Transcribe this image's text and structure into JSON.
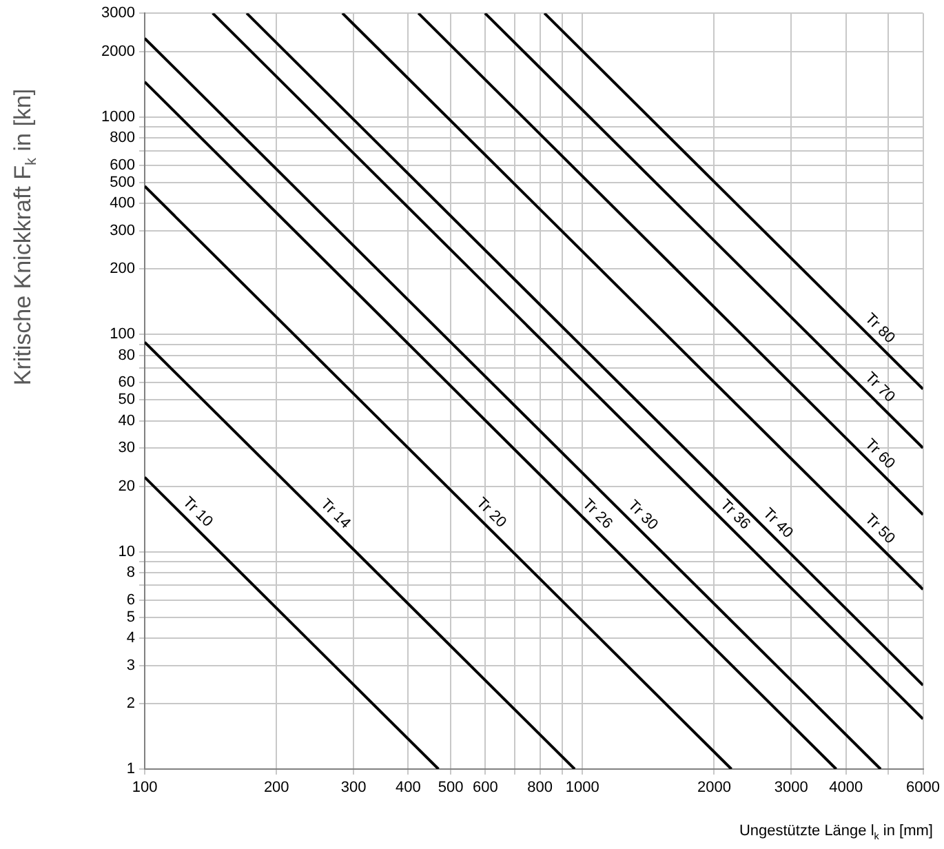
{
  "chart_data": {
    "type": "line",
    "xlabel": "Ungestützte Länge l$_{k}$ in [mm]",
    "ylabel": "Kritische Knickkraft F$_{k}$ in [kn]",
    "log": "xy",
    "grid": true,
    "legend": false,
    "marker": "none",
    "line_style": "solid",
    "xlim": [
      100,
      6000
    ],
    "ylim": [
      1,
      3000
    ],
    "xticks": [
      100,
      200,
      300,
      400,
      500,
      600,
      {
        "value": 700,
        "label": null
      },
      800,
      {
        "value": 900,
        "label": null
      },
      1000,
      2000,
      3000,
      4000,
      {
        "value": 5000,
        "label": null
      },
      6000
    ],
    "yticks": [
      1,
      2,
      3,
      4,
      5,
      6,
      {
        "value": 7,
        "label": null
      },
      8,
      {
        "value": 9,
        "label": null
      },
      10,
      20,
      30,
      40,
      50,
      60,
      {
        "value": 70,
        "label": null
      },
      80,
      {
        "value": 90,
        "label": null
      },
      100,
      200,
      300,
      400,
      500,
      600,
      {
        "value": 700,
        "label": null
      },
      800,
      {
        "value": 900,
        "label": null
      },
      1000,
      2000,
      3000
    ],
    "series": [
      {
        "name": "Tr 10",
        "color": "#000000",
        "x": [
          100,
          469
        ],
        "values": [
          22,
          1
        ]
      },
      {
        "name": "Tr 14",
        "color": "#000000",
        "x": [
          100,
          960
        ],
        "values": [
          92,
          1
        ]
      },
      {
        "name": "Tr 20",
        "color": "#000000",
        "x": [
          100,
          2190
        ],
        "values": [
          480,
          1
        ]
      },
      {
        "name": "Tr 26",
        "color": "#000000",
        "x": [
          100,
          3800
        ],
        "values": [
          1450,
          1
        ]
      },
      {
        "name": "Tr 30",
        "color": "#000000",
        "x": [
          100,
          4800
        ],
        "values": [
          2300,
          1
        ]
      },
      {
        "name": "Tr 36",
        "color": "#000000",
        "x": [
          143,
          6000
        ],
        "values": [
          3000,
          1.7
        ]
      },
      {
        "name": "Tr 40",
        "color": "#000000",
        "x": [
          171,
          6000
        ],
        "values": [
          3000,
          2.43
        ]
      },
      {
        "name": "Tr 50",
        "color": "#000000",
        "x": [
          283,
          6000
        ],
        "values": [
          3000,
          6.7
        ]
      },
      {
        "name": "Tr 60",
        "color": "#000000",
        "x": [
          422,
          6000
        ],
        "values": [
          3000,
          14.8
        ]
      },
      {
        "name": "Tr 70",
        "color": "#000000",
        "x": [
          599,
          6000
        ],
        "values": [
          3000,
          30
        ]
      },
      {
        "name": "Tr 80",
        "color": "#000000",
        "x": [
          819,
          6000
        ],
        "values": [
          3000,
          56
        ]
      }
    ]
  }
}
